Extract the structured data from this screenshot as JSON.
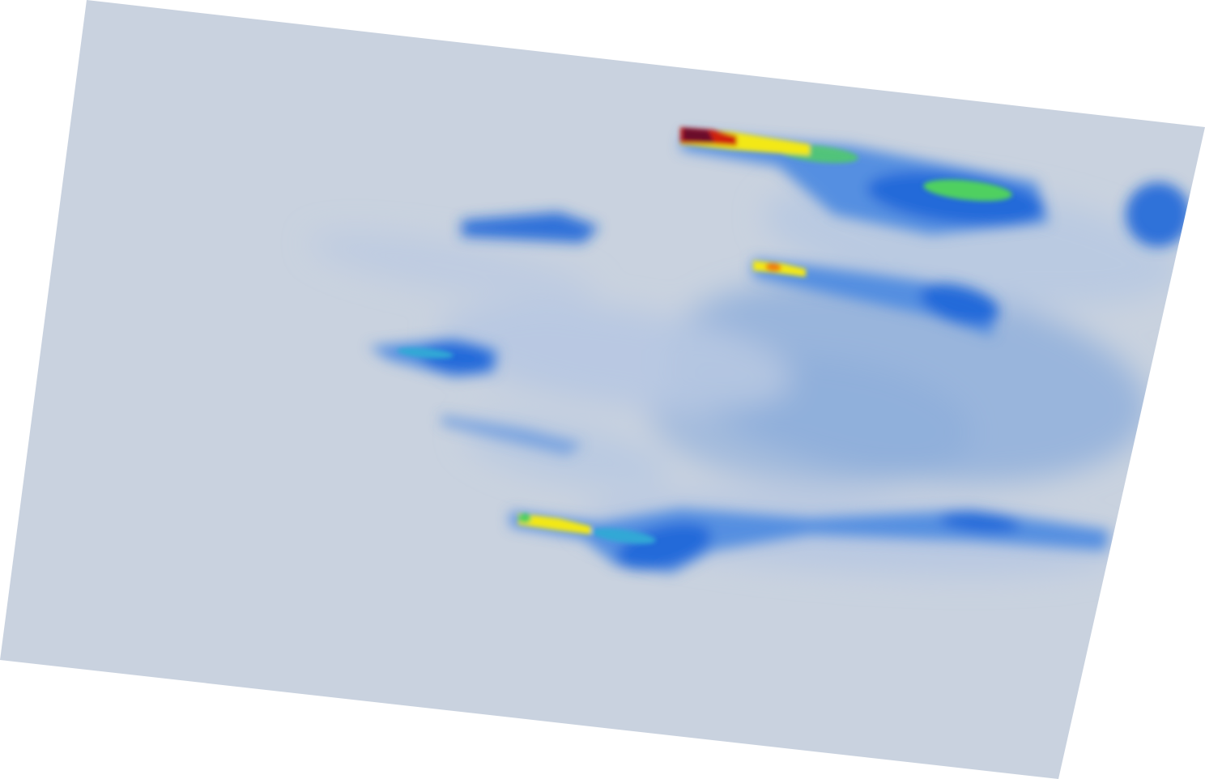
{
  "image": {
    "kind": "heatmap-style concentration field on a tilted plane",
    "colors": {
      "background": "#ffffff",
      "base": "#c9d2df",
      "light": "#b7c8e2",
      "mid": "#8aabdb",
      "blue": "#4f8be0",
      "strong_blue": "#1f66d8",
      "cyan": "#33a8d6",
      "green": "#4fd060",
      "yellow": "#f3e812",
      "orange": "#f07a10",
      "red": "#d02010",
      "maroon": "#6a0a2a"
    }
  }
}
